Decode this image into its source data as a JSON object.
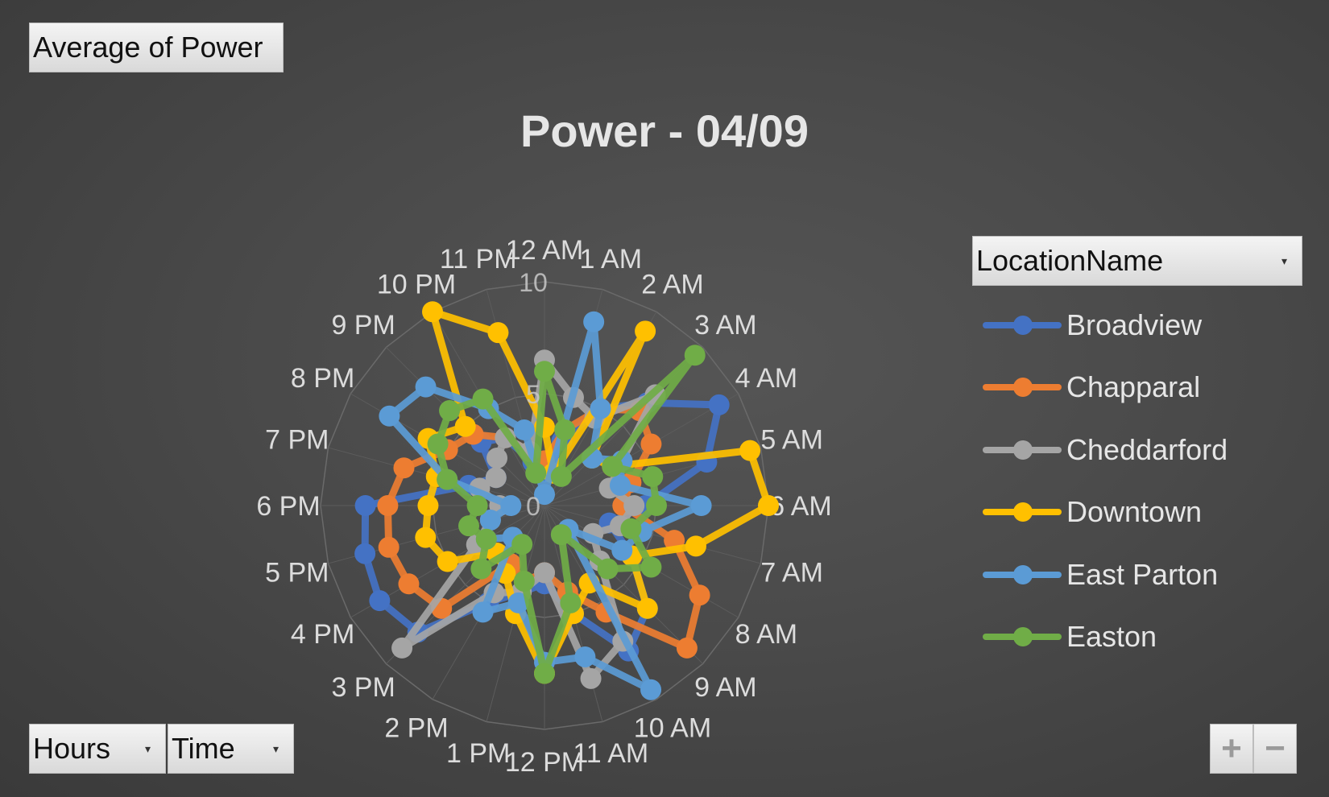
{
  "field_buttons": {
    "value_field": "Average  of Power",
    "row_field_1": "Hours",
    "row_field_2": "Time",
    "legend_field": "LocationName"
  },
  "zoom": {
    "plus": "+",
    "minus": "−"
  },
  "chart_data": {
    "type": "radar",
    "title": "Power - 04/09",
    "categories": [
      "12 AM",
      "1 AM",
      "2 AM",
      "3 AM",
      "4 AM",
      "5 AM",
      "6 AM",
      "7 AM",
      "8 AM",
      "9 AM",
      "10 AM",
      "11 AM",
      "12 PM",
      "1 PM",
      "2 PM",
      "3 PM",
      "4 PM",
      "5 PM",
      "6 PM",
      "7 PM",
      "8 PM",
      "9 PM",
      "10 PM",
      "11 PM"
    ],
    "radial_ticks": [
      "0",
      "5",
      "10"
    ],
    "rmin": 0,
    "rmax": 10,
    "series": [
      {
        "name": "Broadview",
        "color": "#4472c4",
        "values": [
          1.5,
          3.0,
          5.0,
          6.5,
          9.0,
          7.5,
          4.5,
          3.0,
          4.5,
          6.5,
          7.5,
          5.0,
          3.5,
          4.0,
          5.0,
          8.0,
          8.5,
          8.3,
          8.0,
          3.5,
          2.5,
          4.0,
          3.5,
          2.0
        ]
      },
      {
        "name": "Chapparal",
        "color": "#ed7d31",
        "values": [
          2.0,
          3.5,
          5.0,
          6.0,
          5.5,
          4.0,
          3.5,
          6.0,
          8.0,
          9.0,
          5.5,
          4.0,
          3.0,
          3.5,
          3.0,
          6.5,
          7.0,
          7.2,
          7.0,
          6.5,
          5.0,
          4.5,
          3.5,
          2.5
        ]
      },
      {
        "name": "Cheddarford",
        "color": "#a5a5a5",
        "values": [
          6.5,
          5.0,
          4.5,
          7.0,
          4.0,
          3.0,
          4.0,
          3.5,
          2.5,
          3.5,
          7.0,
          8.0,
          3.0,
          4.0,
          4.5,
          9.0,
          3.5,
          2.5,
          2.0,
          3.0,
          2.5,
          3.0,
          3.5,
          2.5
        ]
      },
      {
        "name": "Downtown",
        "color": "#ffc000",
        "values": [
          3.5,
          1.5,
          9.0,
          3.0,
          3.5,
          9.5,
          10.0,
          7.0,
          4.5,
          6.5,
          4.0,
          5.0,
          7.5,
          5.0,
          3.5,
          3.0,
          5.0,
          5.5,
          5.2,
          5.0,
          6.0,
          5.0,
          10.0,
          8.0
        ]
      },
      {
        "name": "East Parton",
        "color": "#5b9bd5",
        "values": [
          0.5,
          8.5,
          5.0,
          3.0,
          4.0,
          3.5,
          7.0,
          4.5,
          4.0,
          1.5,
          9.5,
          7.0,
          7.0,
          4.5,
          5.5,
          2.0,
          3.0,
          2.5,
          1.5,
          4.5,
          8.0,
          7.5,
          5.0,
          3.5
        ]
      },
      {
        "name": "Easton",
        "color": "#70ad47",
        "values": [
          6.0,
          3.5,
          1.5,
          9.5,
          3.5,
          5.0,
          5.0,
          4.0,
          5.5,
          4.0,
          1.5,
          4.5,
          7.5,
          3.5,
          2.0,
          4.0,
          3.0,
          3.5,
          3.0,
          4.5,
          5.5,
          6.0,
          5.5,
          1.5
        ]
      }
    ]
  }
}
